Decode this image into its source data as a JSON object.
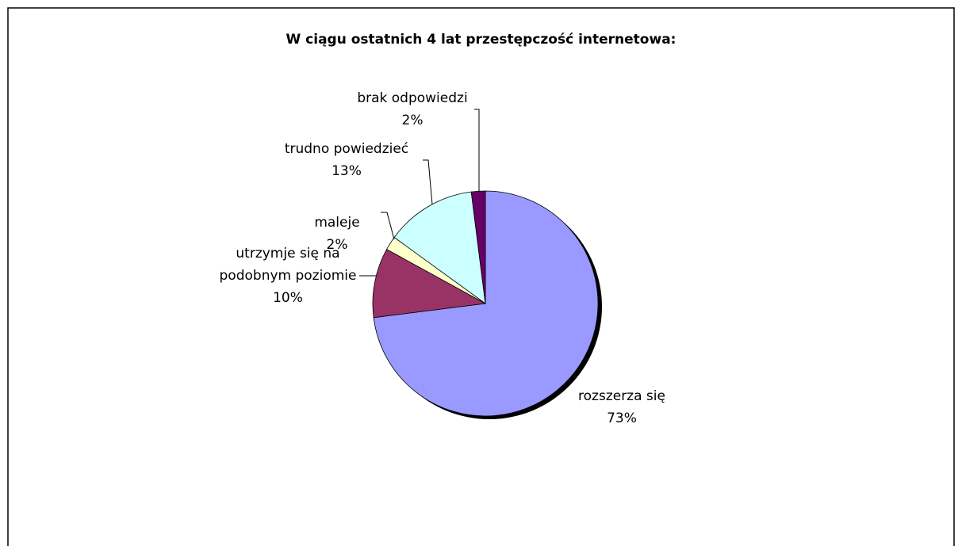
{
  "chart_data": {
    "type": "pie",
    "title": "W ciągu ostatnich 4 lat przestępczość internetowa:",
    "categories": [
      "rozszerza się",
      "utrzymje się na podobnym poziomie",
      "maleje",
      "trudno powiedzieć",
      "brak odpowiedzi"
    ],
    "values": [
      73,
      10,
      2,
      13,
      2
    ],
    "value_labels": [
      "73%",
      "10%",
      "2%",
      "13%",
      "2%"
    ],
    "colors": [
      "#9999ff",
      "#993366",
      "#ffffcc",
      "#ccffff",
      "#660066"
    ]
  }
}
